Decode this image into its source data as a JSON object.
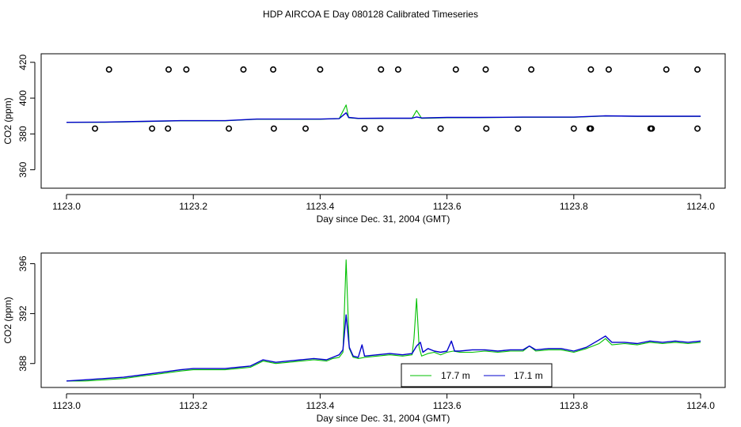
{
  "title": "HDP AIRCOA E  Day 080128  Calibrated Timeseries",
  "colors": {
    "green": "#00c000",
    "blue": "#0000cc",
    "axis": "#000000",
    "background": "#ffffff"
  },
  "chart_data": [
    {
      "type": "line+scatter",
      "name": "top-panel",
      "xlabel": "Day since Dec. 31, 2004 (GMT)",
      "ylabel": "CO2 (ppm)",
      "xlim": [
        1123.0,
        1124.0
      ],
      "ylim": [
        355,
        423
      ],
      "xticks": [
        1123.0,
        1123.2,
        1123.4,
        1123.6,
        1123.8,
        1124.0
      ],
      "xtick_labels": [
        "1123.0",
        "1123.2",
        "1123.4",
        "1123.6",
        "1123.8",
        "1124.0"
      ],
      "yticks": [
        360,
        380,
        400,
        420
      ],
      "ytick_labels": [
        "360",
        "380",
        "400",
        "420"
      ],
      "series": [
        {
          "name": "17.7 m",
          "color": "#00c000",
          "x": [
            1123.0,
            1123.06,
            1123.12,
            1123.18,
            1123.25,
            1123.3,
            1123.35,
            1123.4,
            1123.43,
            1123.441,
            1123.445,
            1123.46,
            1123.5,
            1123.545,
            1123.552,
            1123.56,
            1123.6,
            1123.65,
            1123.72,
            1123.8,
            1123.85,
            1123.9,
            1124.0
          ],
          "y": [
            386.5,
            386.5,
            386.9,
            387.3,
            387.3,
            388.2,
            388.2,
            388.2,
            388.5,
            396.2,
            389,
            388.6,
            388.7,
            388.7,
            393.1,
            388.7,
            389,
            389.1,
            389.3,
            389.3,
            390,
            389.8,
            389.8
          ]
        },
        {
          "name": "17.1 m",
          "color": "#0000cc",
          "x": [
            1123.0,
            1123.06,
            1123.12,
            1123.18,
            1123.25,
            1123.3,
            1123.35,
            1123.4,
            1123.43,
            1123.441,
            1123.445,
            1123.46,
            1123.5,
            1123.545,
            1123.552,
            1123.56,
            1123.6,
            1123.65,
            1123.72,
            1123.8,
            1123.85,
            1123.9,
            1124.0
          ],
          "y": [
            386.5,
            386.6,
            387,
            387.4,
            387.4,
            388.3,
            388.3,
            388.3,
            388.6,
            391.8,
            389.2,
            388.7,
            388.8,
            388.8,
            389.5,
            388.9,
            389.2,
            389.2,
            389.4,
            389.4,
            390.1,
            389.9,
            389.9
          ]
        }
      ],
      "markers": {
        "shape": "open-circle",
        "high": {
          "y": 416,
          "x": [
            1123.067,
            1123.161,
            1123.189,
            1123.279,
            1123.326,
            1123.4,
            1123.496,
            1123.523,
            1123.614,
            1123.661,
            1123.733,
            1123.827,
            1123.855,
            1123.946,
            1123.995
          ]
        },
        "low": {
          "y": 383,
          "x": [
            1123.045,
            1123.135,
            1123.16,
            1123.256,
            1123.327,
            1123.377,
            1123.47,
            1123.495,
            1123.59,
            1123.662,
            1123.712,
            1123.8,
            1123.825,
            1123.827,
            1123.921,
            1123.923,
            1123.995
          ]
        }
      }
    },
    {
      "type": "line",
      "name": "bottom-panel",
      "xlabel": "Day since Dec. 31, 2004 (GMT)",
      "ylabel": "CO2 (ppm)",
      "xlim": [
        1123.0,
        1124.0
      ],
      "ylim": [
        386.4,
        396.6
      ],
      "xticks": [
        1123.0,
        1123.2,
        1123.4,
        1123.6,
        1123.8,
        1124.0
      ],
      "xtick_labels": [
        "1123.0",
        "1123.2",
        "1123.4",
        "1123.6",
        "1123.8",
        "1124.0"
      ],
      "yticks": [
        388,
        392,
        396
      ],
      "ytick_labels": [
        "388",
        "392",
        "396"
      ],
      "legend": {
        "placement": "bottom-center",
        "entries": [
          "17.7 m",
          "17.1 m"
        ]
      },
      "series": [
        {
          "name": "17.7 m",
          "color": "#00c000",
          "x": [
            1123.0,
            1123.03,
            1123.06,
            1123.09,
            1123.12,
            1123.15,
            1123.18,
            1123.2,
            1123.22,
            1123.25,
            1123.27,
            1123.29,
            1123.31,
            1123.33,
            1123.35,
            1123.37,
            1123.39,
            1123.41,
            1123.42,
            1123.43,
            1123.436,
            1123.441,
            1123.446,
            1123.452,
            1123.46,
            1123.47,
            1123.49,
            1123.51,
            1123.53,
            1123.545,
            1123.548,
            1123.552,
            1123.556,
            1123.56,
            1123.57,
            1123.58,
            1123.59,
            1123.6,
            1123.61,
            1123.62,
            1123.64,
            1123.66,
            1123.68,
            1123.7,
            1123.72,
            1123.73,
            1123.74,
            1123.76,
            1123.78,
            1123.8,
            1123.82,
            1123.84,
            1123.85,
            1123.86,
            1123.88,
            1123.9,
            1123.92,
            1123.94,
            1123.96,
            1123.98,
            1124.0
          ],
          "y": [
            386.6,
            386.6,
            386.7,
            386.8,
            387.0,
            387.2,
            387.4,
            387.5,
            387.5,
            387.5,
            387.6,
            387.7,
            388.2,
            388.0,
            388.1,
            388.2,
            388.3,
            388.2,
            388.4,
            388.5,
            388.9,
            396.3,
            389.2,
            388.5,
            388.4,
            388.5,
            388.6,
            388.7,
            388.6,
            388.7,
            390.0,
            393.2,
            389.3,
            388.6,
            388.8,
            388.9,
            388.7,
            388.9,
            389.0,
            388.9,
            388.9,
            389.0,
            388.9,
            389.0,
            389.0,
            389.4,
            389.0,
            389.1,
            389.1,
            388.9,
            389.2,
            389.6,
            390.0,
            389.5,
            389.6,
            389.5,
            389.7,
            389.6,
            389.7,
            389.6,
            389.7
          ]
        },
        {
          "name": "17.1 m",
          "color": "#0000cc",
          "x": [
            1123.0,
            1123.03,
            1123.06,
            1123.09,
            1123.12,
            1123.15,
            1123.18,
            1123.2,
            1123.22,
            1123.25,
            1123.27,
            1123.29,
            1123.31,
            1123.33,
            1123.35,
            1123.37,
            1123.39,
            1123.41,
            1123.42,
            1123.43,
            1123.436,
            1123.441,
            1123.446,
            1123.452,
            1123.46,
            1123.466,
            1123.47,
            1123.49,
            1123.51,
            1123.53,
            1123.545,
            1123.552,
            1123.558,
            1123.562,
            1123.57,
            1123.58,
            1123.59,
            1123.6,
            1123.607,
            1123.612,
            1123.62,
            1123.64,
            1123.66,
            1123.68,
            1123.7,
            1123.72,
            1123.73,
            1123.74,
            1123.76,
            1123.78,
            1123.8,
            1123.82,
            1123.84,
            1123.85,
            1123.86,
            1123.88,
            1123.9,
            1123.92,
            1123.94,
            1123.96,
            1123.98,
            1124.0
          ],
          "y": [
            386.6,
            386.7,
            386.8,
            386.9,
            387.1,
            387.3,
            387.5,
            387.6,
            387.6,
            387.6,
            387.7,
            387.8,
            388.3,
            388.1,
            388.2,
            388.3,
            388.4,
            388.3,
            388.5,
            388.7,
            389.1,
            391.9,
            389.3,
            388.6,
            388.5,
            389.5,
            388.6,
            388.7,
            388.8,
            388.7,
            388.8,
            389.4,
            389.7,
            388.9,
            389.2,
            389.0,
            388.9,
            389.0,
            389.8,
            389.0,
            389.0,
            389.1,
            389.1,
            389.0,
            389.1,
            389.1,
            389.4,
            389.1,
            389.2,
            389.2,
            389.0,
            389.3,
            389.9,
            390.2,
            389.7,
            389.7,
            389.6,
            389.8,
            389.7,
            389.8,
            389.7,
            389.8
          ]
        }
      ]
    }
  ]
}
